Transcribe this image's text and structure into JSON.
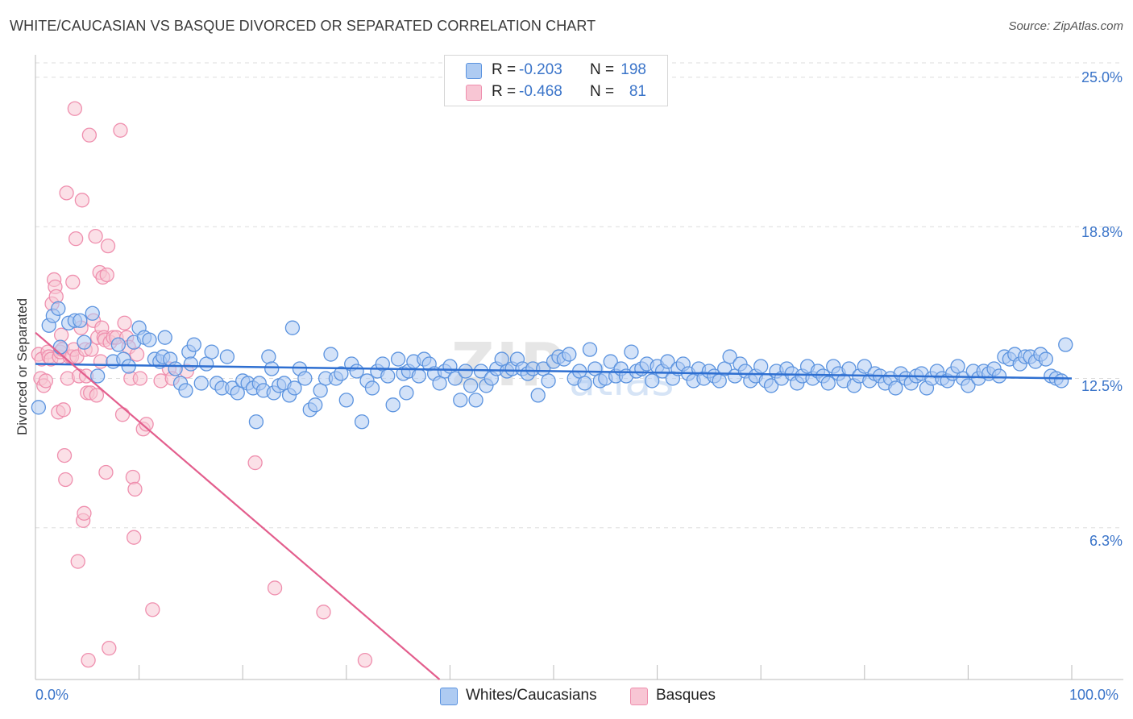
{
  "title": "WHITE/CAUCASIAN VS BASQUE DIVORCED OR SEPARATED CORRELATION CHART",
  "source": "Source: ZipAtlas.com",
  "watermark": "ZIPatlas",
  "legend_top": {
    "rows": [
      {
        "r_label": "R =",
        "r_value": "-0.203",
        "n_label": "N =",
        "n_value": "198"
      },
      {
        "r_label": "R =",
        "r_value": "-0.468",
        "n_label": "N =",
        "n_value": "81"
      }
    ]
  },
  "legend_bottom": [
    "Whites/Caucasians",
    "Basques"
  ],
  "colors": {
    "blue_fill": "#aecbf2",
    "blue_stroke": "#5b93df",
    "blue_line": "#2e6fd1",
    "pink_fill": "#f8c6d4",
    "pink_stroke": "#ef8fae",
    "pink_line": "#e35e8d",
    "axis_text": "#3a74c9",
    "grid": "#dddddd"
  },
  "chart_data": {
    "type": "scatter",
    "title": "WHITE/CAUCASIAN VS BASQUE DIVORCED OR SEPARATED CORRELATION CHART",
    "xlabel": "",
    "ylabel": "Divorced or Separated",
    "xlim": [
      0,
      100
    ],
    "ylim": [
      0,
      25.6
    ],
    "x_tick_labels": [
      "0.0%",
      "100.0%"
    ],
    "y_ticks": [
      6.3,
      12.5,
      18.8,
      25.0
    ],
    "y_tick_labels": [
      "6.3%",
      "12.5%",
      "18.8%",
      "25.0%"
    ],
    "grid": true,
    "series": [
      {
        "name": "Whites/Caucasians",
        "r": -0.203,
        "n": 198,
        "trend": {
          "x": [
            0,
            100
          ],
          "y": [
            13.1,
            12.5
          ]
        },
        "points": [
          [
            0.3,
            11.3
          ],
          [
            1.3,
            14.7
          ],
          [
            1.7,
            15.1
          ],
          [
            2.2,
            15.4
          ],
          [
            2.4,
            13.8
          ],
          [
            3.2,
            14.8
          ],
          [
            3.8,
            14.9
          ],
          [
            4.3,
            14.9
          ],
          [
            4.7,
            14.0
          ],
          [
            5.5,
            15.2
          ],
          [
            6.0,
            12.6
          ],
          [
            7.5,
            13.2
          ],
          [
            8.0,
            13.9
          ],
          [
            8.5,
            13.3
          ],
          [
            9.0,
            13.0
          ],
          [
            9.5,
            14.0
          ],
          [
            10.0,
            14.6
          ],
          [
            10.5,
            14.2
          ],
          [
            11.0,
            14.1
          ],
          [
            11.5,
            13.3
          ],
          [
            12.0,
            13.2
          ],
          [
            12.3,
            13.4
          ],
          [
            12.5,
            14.2
          ],
          [
            13.0,
            13.3
          ],
          [
            13.5,
            12.9
          ],
          [
            14.0,
            12.3
          ],
          [
            14.5,
            12.0
          ],
          [
            14.8,
            13.6
          ],
          [
            15.0,
            13.1
          ],
          [
            15.3,
            13.9
          ],
          [
            16.0,
            12.3
          ],
          [
            16.5,
            13.1
          ],
          [
            17.0,
            13.6
          ],
          [
            17.5,
            12.3
          ],
          [
            18.0,
            12.1
          ],
          [
            18.5,
            13.4
          ],
          [
            19.0,
            12.1
          ],
          [
            19.5,
            11.9
          ],
          [
            20.0,
            12.4
          ],
          [
            20.5,
            12.3
          ],
          [
            21.0,
            12.1
          ],
          [
            21.3,
            10.7
          ],
          [
            21.6,
            12.3
          ],
          [
            22.0,
            12.0
          ],
          [
            22.5,
            13.4
          ],
          [
            22.8,
            12.9
          ],
          [
            23.0,
            11.9
          ],
          [
            23.5,
            12.2
          ],
          [
            24.0,
            12.3
          ],
          [
            24.5,
            11.8
          ],
          [
            24.8,
            14.6
          ],
          [
            25.0,
            12.1
          ],
          [
            25.5,
            12.9
          ],
          [
            26.0,
            12.5
          ],
          [
            26.5,
            11.2
          ],
          [
            27.0,
            11.4
          ],
          [
            27.5,
            12.0
          ],
          [
            28.0,
            12.5
          ],
          [
            28.5,
            13.5
          ],
          [
            29.0,
            12.5
          ],
          [
            29.5,
            12.7
          ],
          [
            30.0,
            11.6
          ],
          [
            30.5,
            13.1
          ],
          [
            31.0,
            12.8
          ],
          [
            31.5,
            10.7
          ],
          [
            32.0,
            12.4
          ],
          [
            32.5,
            12.1
          ],
          [
            33.0,
            12.8
          ],
          [
            33.5,
            13.1
          ],
          [
            34.0,
            12.6
          ],
          [
            34.5,
            11.4
          ],
          [
            35.0,
            13.3
          ],
          [
            35.5,
            12.7
          ],
          [
            35.8,
            11.9
          ],
          [
            36.0,
            12.8
          ],
          [
            36.5,
            13.2
          ],
          [
            37.0,
            12.6
          ],
          [
            37.5,
            13.3
          ],
          [
            38.0,
            13.1
          ],
          [
            38.5,
            12.7
          ],
          [
            39.0,
            12.3
          ],
          [
            39.5,
            12.8
          ],
          [
            40.0,
            13.0
          ],
          [
            40.5,
            12.5
          ],
          [
            41.0,
            11.6
          ],
          [
            41.5,
            12.8
          ],
          [
            42.0,
            12.2
          ],
          [
            42.5,
            11.6
          ],
          [
            43.0,
            12.8
          ],
          [
            43.5,
            12.2
          ],
          [
            44.0,
            12.5
          ],
          [
            44.5,
            12.9
          ],
          [
            45.0,
            13.3
          ],
          [
            45.5,
            12.8
          ],
          [
            46.0,
            12.9
          ],
          [
            46.5,
            13.3
          ],
          [
            47.0,
            12.9
          ],
          [
            47.5,
            12.7
          ],
          [
            48.0,
            12.9
          ],
          [
            48.5,
            11.8
          ],
          [
            49.0,
            12.9
          ],
          [
            49.5,
            12.4
          ],
          [
            50.0,
            13.2
          ],
          [
            50.5,
            13.4
          ],
          [
            51.0,
            13.3
          ],
          [
            51.5,
            13.5
          ],
          [
            52.0,
            12.5
          ],
          [
            52.5,
            12.8
          ],
          [
            53.0,
            12.3
          ],
          [
            53.5,
            13.7
          ],
          [
            54.0,
            12.9
          ],
          [
            54.5,
            12.4
          ],
          [
            55.0,
            12.5
          ],
          [
            55.5,
            13.2
          ],
          [
            56.0,
            12.6
          ],
          [
            56.5,
            12.9
          ],
          [
            57.0,
            12.6
          ],
          [
            57.5,
            13.6
          ],
          [
            58.0,
            12.8
          ],
          [
            58.5,
            12.9
          ],
          [
            59.0,
            13.1
          ],
          [
            59.5,
            12.4
          ],
          [
            60.0,
            13.0
          ],
          [
            60.5,
            12.8
          ],
          [
            61.0,
            13.2
          ],
          [
            61.5,
            12.5
          ],
          [
            62.0,
            12.9
          ],
          [
            62.5,
            13.1
          ],
          [
            63.0,
            12.7
          ],
          [
            63.5,
            12.4
          ],
          [
            64.0,
            12.9
          ],
          [
            64.5,
            12.5
          ],
          [
            65.0,
            12.8
          ],
          [
            65.5,
            12.6
          ],
          [
            66.0,
            12.4
          ],
          [
            66.5,
            12.9
          ],
          [
            67.0,
            13.4
          ],
          [
            67.5,
            12.6
          ],
          [
            68.0,
            13.1
          ],
          [
            68.5,
            12.8
          ],
          [
            69.0,
            12.4
          ],
          [
            69.5,
            12.6
          ],
          [
            70.0,
            13.0
          ],
          [
            70.5,
            12.4
          ],
          [
            71.0,
            12.2
          ],
          [
            71.5,
            12.8
          ],
          [
            72.0,
            12.5
          ],
          [
            72.5,
            12.9
          ],
          [
            73.0,
            12.7
          ],
          [
            73.5,
            12.3
          ],
          [
            74.0,
            12.6
          ],
          [
            74.5,
            13.0
          ],
          [
            75.0,
            12.5
          ],
          [
            75.5,
            12.8
          ],
          [
            76.0,
            12.6
          ],
          [
            76.5,
            12.3
          ],
          [
            77.0,
            13.0
          ],
          [
            77.5,
            12.7
          ],
          [
            78.0,
            12.4
          ],
          [
            78.5,
            12.9
          ],
          [
            79.0,
            12.2
          ],
          [
            79.5,
            12.6
          ],
          [
            80.0,
            13.0
          ],
          [
            80.5,
            12.4
          ],
          [
            81.0,
            12.7
          ],
          [
            81.5,
            12.6
          ],
          [
            82.0,
            12.3
          ],
          [
            82.5,
            12.5
          ],
          [
            83.0,
            12.1
          ],
          [
            83.5,
            12.7
          ],
          [
            84.0,
            12.5
          ],
          [
            84.5,
            12.3
          ],
          [
            85.0,
            12.6
          ],
          [
            85.5,
            12.7
          ],
          [
            86.0,
            12.1
          ],
          [
            86.5,
            12.5
          ],
          [
            87.0,
            12.8
          ],
          [
            87.5,
            12.5
          ],
          [
            88.0,
            12.4
          ],
          [
            88.5,
            12.7
          ],
          [
            89.0,
            13.0
          ],
          [
            89.5,
            12.5
          ],
          [
            90.0,
            12.2
          ],
          [
            90.5,
            12.8
          ],
          [
            91.0,
            12.5
          ],
          [
            91.5,
            12.8
          ],
          [
            92.0,
            12.7
          ],
          [
            92.5,
            12.9
          ],
          [
            93.0,
            12.6
          ],
          [
            93.5,
            13.4
          ],
          [
            94.0,
            13.3
          ],
          [
            94.5,
            13.5
          ],
          [
            95.0,
            13.1
          ],
          [
            95.5,
            13.4
          ],
          [
            96.0,
            13.4
          ],
          [
            96.5,
            13.2
          ],
          [
            97.0,
            13.5
          ],
          [
            97.5,
            13.3
          ],
          [
            98.0,
            12.6
          ],
          [
            98.5,
            12.5
          ],
          [
            99.0,
            12.4
          ],
          [
            99.4,
            13.9
          ]
        ]
      },
      {
        "name": "Basques",
        "r": -0.468,
        "n": 81,
        "trend": {
          "x": [
            0,
            39
          ],
          "y": [
            14.4,
            0
          ]
        },
        "points": [
          [
            0.3,
            13.5
          ],
          [
            0.5,
            12.5
          ],
          [
            0.6,
            13.3
          ],
          [
            0.8,
            12.2
          ],
          [
            1.0,
            12.4
          ],
          [
            1.2,
            13.6
          ],
          [
            1.3,
            13.4
          ],
          [
            1.5,
            13.3
          ],
          [
            1.6,
            15.6
          ],
          [
            1.8,
            16.6
          ],
          [
            1.9,
            16.3
          ],
          [
            2.0,
            15.9
          ],
          [
            2.2,
            11.1
          ],
          [
            2.3,
            13.4
          ],
          [
            2.4,
            13.6
          ],
          [
            2.5,
            14.3
          ],
          [
            2.6,
            13.7
          ],
          [
            2.7,
            11.2
          ],
          [
            2.8,
            9.3
          ],
          [
            2.9,
            8.3
          ],
          [
            3.0,
            20.2
          ],
          [
            3.1,
            12.5
          ],
          [
            3.3,
            13.4
          ],
          [
            3.5,
            13.4
          ],
          [
            3.6,
            16.5
          ],
          [
            3.7,
            13.7
          ],
          [
            3.8,
            23.7
          ],
          [
            3.9,
            18.3
          ],
          [
            4.0,
            13.4
          ],
          [
            4.1,
            4.9
          ],
          [
            4.2,
            12.6
          ],
          [
            4.4,
            14.6
          ],
          [
            4.5,
            19.9
          ],
          [
            4.6,
            6.6
          ],
          [
            4.7,
            6.9
          ],
          [
            4.8,
            13.7
          ],
          [
            4.9,
            12.6
          ],
          [
            5.0,
            11.9
          ],
          [
            5.1,
            0.8
          ],
          [
            5.2,
            22.6
          ],
          [
            5.3,
            11.9
          ],
          [
            5.4,
            13.7
          ],
          [
            5.6,
            14.9
          ],
          [
            5.8,
            18.4
          ],
          [
            5.9,
            11.8
          ],
          [
            6.0,
            14.2
          ],
          [
            6.2,
            16.9
          ],
          [
            6.3,
            13.2
          ],
          [
            6.4,
            14.6
          ],
          [
            6.5,
            16.7
          ],
          [
            6.6,
            14.2
          ],
          [
            6.7,
            14.1
          ],
          [
            6.8,
            8.6
          ],
          [
            6.9,
            16.8
          ],
          [
            7.0,
            18.0
          ],
          [
            7.1,
            1.3
          ],
          [
            7.2,
            14.0
          ],
          [
            7.5,
            14.2
          ],
          [
            7.8,
            14.2
          ],
          [
            8.2,
            22.8
          ],
          [
            8.4,
            11.0
          ],
          [
            8.6,
            14.8
          ],
          [
            8.8,
            14.2
          ],
          [
            9.0,
            13.8
          ],
          [
            9.2,
            12.5
          ],
          [
            9.4,
            8.4
          ],
          [
            9.5,
            5.9
          ],
          [
            9.6,
            7.9
          ],
          [
            9.8,
            13.5
          ],
          [
            10.1,
            12.5
          ],
          [
            10.4,
            10.4
          ],
          [
            10.7,
            10.6
          ],
          [
            11.3,
            2.9
          ],
          [
            12.1,
            12.4
          ],
          [
            12.9,
            12.9
          ],
          [
            13.2,
            12.5
          ],
          [
            14.6,
            12.8
          ],
          [
            21.2,
            9.0
          ],
          [
            23.1,
            3.8
          ],
          [
            27.8,
            2.8
          ],
          [
            31.8,
            0.8
          ]
        ]
      }
    ]
  }
}
